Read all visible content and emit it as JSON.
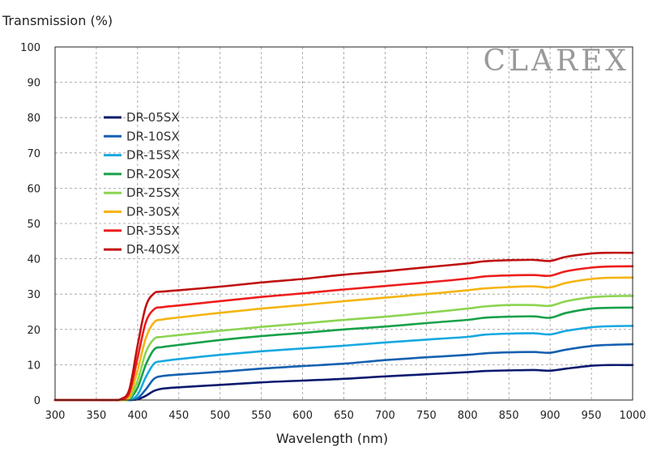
{
  "brand": {
    "name": "CLAREX",
    "color": "#999999"
  },
  "chart_data": {
    "type": "line",
    "title": "",
    "xlabel": "Wavelength (nm)",
    "ylabel": "Transmission (%)",
    "xlim": [
      300,
      1000
    ],
    "ylim": [
      0,
      100
    ],
    "xticks": [
      300,
      350,
      400,
      450,
      500,
      550,
      600,
      650,
      700,
      750,
      800,
      850,
      900,
      950,
      1000
    ],
    "yticks": [
      0,
      10,
      20,
      30,
      40,
      50,
      60,
      70,
      80,
      90,
      100
    ],
    "xtick_labels": [
      "300",
      "350",
      "400",
      "450",
      "500",
      "550",
      "600",
      "650",
      "700",
      "750",
      "800",
      "850",
      "900",
      "950",
      "1000"
    ],
    "ytick_labels": [
      "0",
      "10",
      "20",
      "30",
      "40",
      "50",
      "60",
      "70",
      "80",
      "90",
      "100"
    ],
    "grid": true,
    "legend_position": "upper-left",
    "x": [
      300,
      350,
      370,
      380,
      390,
      400,
      410,
      420,
      430,
      450,
      500,
      550,
      600,
      650,
      700,
      750,
      800,
      820,
      850,
      880,
      900,
      920,
      950,
      970,
      1000
    ],
    "series": [
      {
        "name": "DR-05SX",
        "color": "#0a1a6e",
        "values": [
          0,
          0,
          0,
          0,
          0,
          0.2,
          1.2,
          2.6,
          3.2,
          3.6,
          4.3,
          5.0,
          5.5,
          6.0,
          6.7,
          7.3,
          7.9,
          8.2,
          8.4,
          8.5,
          8.3,
          8.9,
          9.7,
          9.9,
          9.9
        ]
      },
      {
        "name": "DR-10SX",
        "color": "#1560b0",
        "values": [
          0,
          0,
          0,
          0,
          0,
          0.5,
          3.0,
          6.0,
          6.8,
          7.2,
          8.0,
          8.9,
          9.6,
          10.3,
          11.3,
          12.1,
          12.8,
          13.2,
          13.5,
          13.6,
          13.4,
          14.3,
          15.3,
          15.6,
          15.8
        ]
      },
      {
        "name": "DR-15SX",
        "color": "#17a8e0",
        "values": [
          0,
          0,
          0,
          0,
          0.1,
          1.5,
          6.5,
          10.3,
          11.0,
          11.6,
          12.8,
          13.8,
          14.6,
          15.4,
          16.3,
          17.1,
          17.9,
          18.5,
          18.8,
          18.9,
          18.6,
          19.6,
          20.6,
          20.9,
          21.0
        ]
      },
      {
        "name": "DR-20SX",
        "color": "#17a14a",
        "values": [
          0,
          0,
          0,
          0,
          0.3,
          3.5,
          10.0,
          14.3,
          15.0,
          15.6,
          17.0,
          18.1,
          19.0,
          20.0,
          20.8,
          21.8,
          22.7,
          23.3,
          23.6,
          23.7,
          23.3,
          24.7,
          25.9,
          26.1,
          26.2
        ]
      },
      {
        "name": "DR-25SX",
        "color": "#8cd450",
        "values": [
          0,
          0,
          0,
          0,
          0.5,
          5.5,
          13.5,
          17.3,
          17.9,
          18.4,
          19.6,
          20.7,
          21.7,
          22.7,
          23.6,
          24.7,
          25.9,
          26.5,
          26.9,
          26.9,
          26.7,
          28.0,
          29.1,
          29.4,
          29.5
        ]
      },
      {
        "name": "DR-30SX",
        "color": "#f5b40f",
        "values": [
          0,
          0,
          0,
          0,
          1.0,
          8.5,
          17.5,
          22.0,
          22.8,
          23.4,
          24.7,
          25.9,
          26.9,
          28.0,
          29.0,
          30.0,
          31.1,
          31.6,
          32.0,
          32.2,
          31.9,
          33.2,
          34.3,
          34.6,
          34.7
        ]
      },
      {
        "name": "DR-35SX",
        "color": "#ee1d1d",
        "values": [
          0,
          0,
          0,
          0.2,
          2.0,
          12.0,
          22.0,
          25.7,
          26.3,
          26.8,
          28.0,
          29.2,
          30.2,
          31.3,
          32.3,
          33.3,
          34.4,
          35.0,
          35.3,
          35.4,
          35.2,
          36.5,
          37.5,
          37.8,
          37.9
        ]
      },
      {
        "name": "DR-40SX",
        "color": "#c01010",
        "values": [
          0,
          0,
          0,
          0.3,
          3.0,
          15.5,
          26.5,
          30.2,
          30.7,
          31.1,
          32.1,
          33.3,
          34.3,
          35.5,
          36.5,
          37.6,
          38.7,
          39.3,
          39.6,
          39.7,
          39.4,
          40.6,
          41.5,
          41.7,
          41.7
        ]
      }
    ]
  }
}
